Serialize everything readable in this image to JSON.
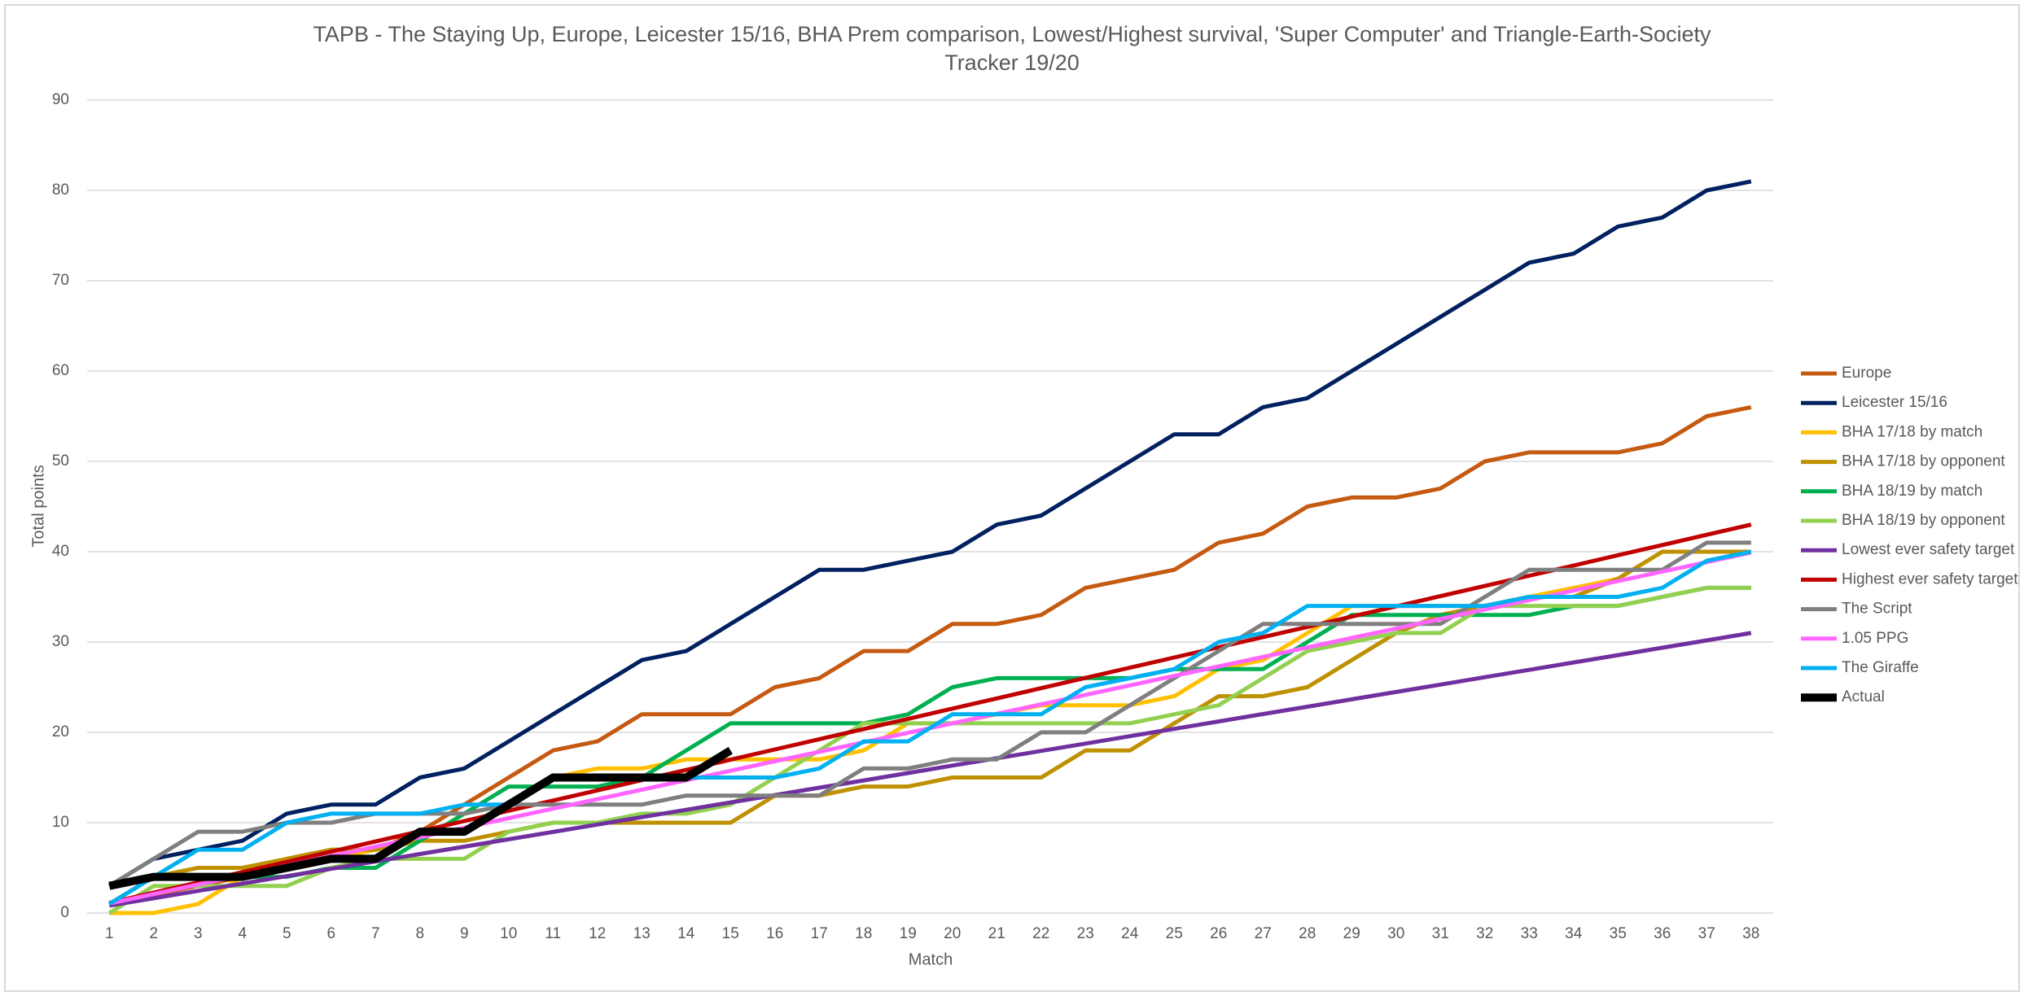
{
  "chart_data": {
    "type": "line",
    "title": [
      "TAPB - The Staying Up, Europe, Leicester 15/16, BHA Prem comparison, Lowest/Highest survival, 'Super Computer' and Triangle-Earth-Society",
      "Tracker 19/20"
    ],
    "x_label": "Match",
    "y_label": "Total points",
    "categories": [
      1,
      2,
      3,
      4,
      5,
      6,
      7,
      8,
      9,
      10,
      11,
      12,
      13,
      14,
      15,
      16,
      17,
      18,
      19,
      20,
      21,
      22,
      23,
      24,
      25,
      26,
      27,
      28,
      29,
      30,
      31,
      32,
      33,
      34,
      35,
      36,
      37,
      38
    ],
    "ylim": [
      0,
      90
    ],
    "yticks": [
      0,
      10,
      20,
      30,
      40,
      50,
      60,
      70,
      80,
      90
    ],
    "grid": true,
    "legend": "right",
    "series": [
      {
        "name": "Europe",
        "color": "#c55a11",
        "values": [
          1,
          2,
          3,
          4,
          6,
          7,
          7,
          9,
          12,
          15,
          18,
          19,
          22,
          22,
          22,
          25,
          26,
          29,
          29,
          32,
          32,
          33,
          36,
          37,
          38,
          41,
          42,
          45,
          46,
          46,
          47,
          50,
          51,
          51,
          51,
          52,
          55,
          56
        ]
      },
      {
        "name": "Leicester 15/16",
        "color": "#002060",
        "values": [
          3,
          6,
          7,
          8,
          11,
          12,
          12,
          15,
          16,
          19,
          22,
          25,
          28,
          29,
          32,
          35,
          38,
          38,
          39,
          40,
          43,
          44,
          47,
          50,
          53,
          53,
          56,
          57,
          60,
          63,
          66,
          69,
          72,
          73,
          76,
          77,
          80,
          81
        ]
      },
      {
        "name": "BHA 17/18 by match",
        "color": "#ffc000",
        "values": [
          0,
          0,
          1,
          4,
          5,
          6,
          7,
          8,
          11,
          12,
          15,
          16,
          16,
          17,
          17,
          17,
          17,
          18,
          21,
          21,
          22,
          23,
          23,
          23,
          24,
          27,
          28,
          31,
          34,
          34,
          34,
          34,
          35,
          36,
          37,
          40,
          40,
          40
        ]
      },
      {
        "name": "BHA 17/18 by opponent",
        "color": "#bf9000",
        "values": [
          1,
          4,
          5,
          5,
          6,
          7,
          7,
          8,
          8,
          9,
          10,
          10,
          10,
          10,
          10,
          13,
          13,
          14,
          14,
          15,
          15,
          15,
          18,
          18,
          21,
          24,
          24,
          25,
          28,
          31,
          33,
          34,
          35,
          35,
          37,
          40,
          40,
          40
        ]
      },
      {
        "name": "BHA 18/19 by match",
        "color": "#00b050",
        "values": [
          1,
          4,
          4,
          4,
          4,
          5,
          5,
          8,
          11,
          14,
          14,
          14,
          15,
          18,
          21,
          21,
          21,
          21,
          22,
          25,
          26,
          26,
          26,
          26,
          27,
          27,
          27,
          30,
          33,
          33,
          33,
          33,
          33,
          34,
          34,
          35,
          36,
          36
        ]
      },
      {
        "name": "BHA 18/19 by opponent",
        "color": "#92d050",
        "values": [
          0,
          3,
          3,
          3,
          3,
          5,
          6,
          6,
          6,
          9,
          10,
          10,
          11,
          11,
          12,
          15,
          18,
          21,
          21,
          21,
          21,
          21,
          21,
          21,
          22,
          23,
          26,
          29,
          30,
          31,
          31,
          34,
          34,
          34,
          34,
          35,
          36,
          36
        ]
      },
      {
        "name": "Lowest ever safety target",
        "color": "#7030a0",
        "values": [
          0.82,
          1.63,
          2.45,
          3.26,
          4.08,
          4.89,
          5.71,
          6.53,
          7.34,
          8.16,
          8.97,
          9.79,
          10.61,
          11.42,
          12.24,
          13.05,
          13.87,
          14.68,
          15.5,
          16.32,
          17.13,
          17.95,
          18.76,
          19.58,
          20.39,
          21.21,
          22.03,
          22.84,
          23.66,
          24.47,
          25.29,
          26.11,
          26.92,
          27.74,
          28.55,
          29.37,
          30.18,
          31
        ]
      },
      {
        "name": "Highest ever safety target",
        "color": "#c00000",
        "values": [
          1.13,
          2.26,
          3.39,
          4.53,
          5.66,
          6.79,
          7.92,
          9.05,
          10.18,
          11.32,
          12.45,
          13.58,
          14.71,
          15.84,
          16.97,
          18.11,
          19.24,
          20.37,
          21.5,
          22.63,
          23.76,
          24.89,
          26.03,
          27.16,
          28.29,
          29.42,
          30.55,
          31.68,
          32.82,
          33.95,
          35.08,
          36.21,
          37.34,
          38.47,
          39.61,
          40.74,
          41.87,
          43
        ]
      },
      {
        "name": "The Script",
        "color": "#7f7f7f",
        "values": [
          3,
          6,
          9,
          9,
          10,
          10,
          11,
          11,
          11,
          12,
          12,
          12,
          12,
          13,
          13,
          13,
          13,
          16,
          16,
          17,
          17,
          20,
          20,
          23,
          26,
          29,
          32,
          32,
          32,
          32,
          32,
          35,
          38,
          38,
          38,
          38,
          41,
          41
        ]
      },
      {
        "name": "1.05 PPG",
        "color": "#ff66ff",
        "values": [
          1.05,
          2.1,
          3.15,
          4.2,
          5.25,
          6.3,
          7.35,
          8.4,
          9.45,
          10.5,
          11.55,
          12.6,
          13.65,
          14.7,
          15.75,
          16.8,
          17.85,
          18.9,
          19.95,
          21,
          22.05,
          23.1,
          24.15,
          25.2,
          26.25,
          27.3,
          28.35,
          29.4,
          30.45,
          31.5,
          32.55,
          33.6,
          34.65,
          35.7,
          36.75,
          37.8,
          38.85,
          39.9
        ]
      },
      {
        "name": "The Giraffe",
        "color": "#00b0f0",
        "values": [
          1,
          4,
          7,
          7,
          10,
          11,
          11,
          11,
          12,
          12,
          15,
          15,
          15,
          15,
          15,
          15,
          16,
          19,
          19,
          22,
          22,
          22,
          25,
          26,
          27,
          30,
          31,
          34,
          34,
          34,
          34,
          34,
          35,
          35,
          35,
          36,
          39,
          40
        ]
      },
      {
        "name": "Actual",
        "color": "#000000",
        "values": [
          3,
          4,
          4,
          4,
          5,
          6,
          6,
          9,
          9,
          12,
          15,
          15,
          15,
          15,
          18,
          null,
          null,
          null,
          null,
          null,
          null,
          null,
          null,
          null,
          null,
          null,
          null,
          null,
          null,
          null,
          null,
          null,
          null,
          null,
          null,
          null,
          null,
          null
        ]
      }
    ]
  }
}
